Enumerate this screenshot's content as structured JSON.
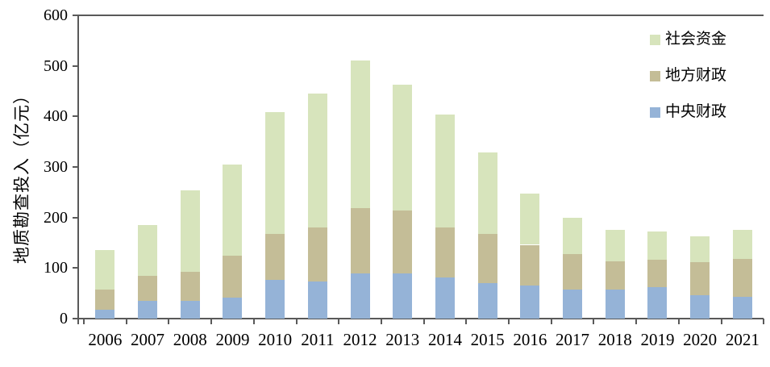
{
  "chart_data": {
    "type": "bar",
    "stacked": true,
    "title": "",
    "xlabel": "",
    "ylabel": "地质勘查投入（亿元）",
    "ylim": [
      0,
      600
    ],
    "yticks": [
      0,
      100,
      200,
      300,
      400,
      500,
      600
    ],
    "grid": false,
    "legend_position": "top-right",
    "axis_color": "#595959",
    "categories": [
      "2006",
      "2007",
      "2008",
      "2009",
      "2010",
      "2011",
      "2012",
      "2013",
      "2014",
      "2015",
      "2016",
      "2017",
      "2018",
      "2019",
      "2020",
      "2021"
    ],
    "series": [
      {
        "name": "中央财政",
        "color": "#95b3d7",
        "values": [
          18,
          35,
          35,
          42,
          76,
          73,
          89,
          89,
          82,
          71,
          65,
          58,
          57,
          63,
          47,
          43
        ]
      },
      {
        "name": "地方财政",
        "color": "#c4bd97",
        "values": [
          40,
          50,
          58,
          82,
          92,
          107,
          129,
          125,
          99,
          96,
          81,
          69,
          56,
          54,
          65,
          75
        ]
      },
      {
        "name": "社会资金",
        "color": "#d7e4bc",
        "values": [
          77,
          100,
          160,
          180,
          241,
          266,
          292,
          248,
          222,
          162,
          102,
          72,
          62,
          56,
          51,
          57
        ]
      }
    ],
    "totals": [
      135,
      185,
      253,
      304,
      409,
      446,
      510,
      462,
      403,
      329,
      248,
      199,
      175,
      173,
      163,
      175
    ]
  }
}
